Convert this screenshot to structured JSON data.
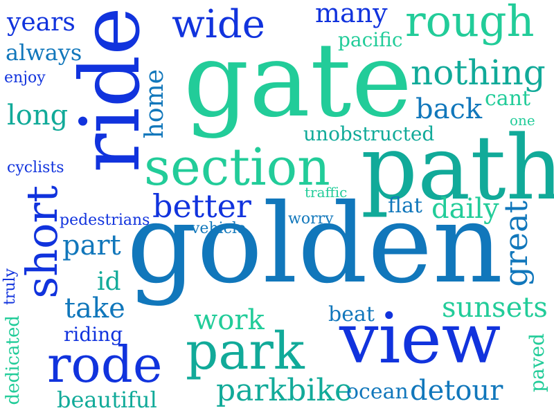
{
  "palette": {
    "blue": "#1133dd",
    "ocean": "#1177bb",
    "teal": "#11aa99",
    "mint": "#22cc99"
  },
  "words": {
    "golden": "golden",
    "gate": "gate",
    "path": "path",
    "ride": "ride",
    "view": "view",
    "section": "section",
    "park": "park",
    "rode": "rode",
    "short": "short",
    "rough": "rough",
    "wide": "wide",
    "nothing": "nothing",
    "better": "better",
    "great": "great",
    "many": "many",
    "back": "back",
    "daily": "daily",
    "parkbike": "parkbike",
    "sunsets": "sunsets",
    "work": "work",
    "detour": "detour",
    "part": "part",
    "take": "take",
    "long": "long",
    "years": "years",
    "always": "always",
    "home": "home",
    "beautiful": "beautiful",
    "unobstructed": "unobstructed",
    "pacific": "pacific",
    "cant": "cant",
    "flat": "flat",
    "id": "id",
    "beat": "beat",
    "ocean": "ocean",
    "riding": "riding",
    "paved": "paved",
    "dedicated": "dedicated",
    "cyclists": "cyclists",
    "pedestrians": "pedestrians",
    "vehicle": "vehicle",
    "worry": "worry",
    "traffic": "traffic",
    "truly": "truly",
    "enjoy": "enjoy",
    "one": "one"
  }
}
